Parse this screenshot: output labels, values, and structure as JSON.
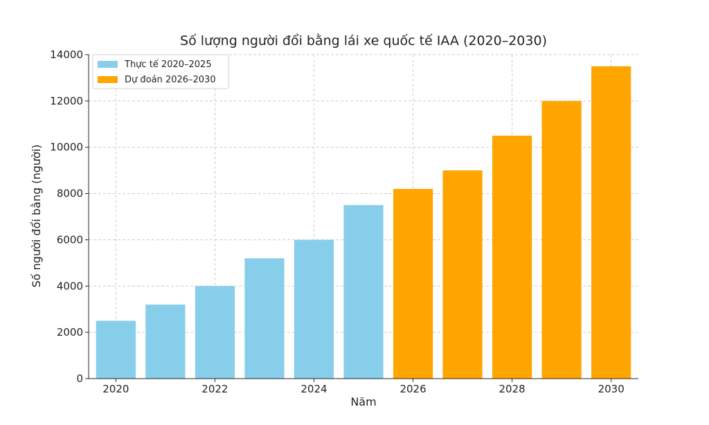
{
  "chart_data": {
    "type": "bar",
    "title": "Số lượng người đổi bằng lái xe quốc tế IAA (2020–2030)",
    "xlabel": "Năm",
    "ylabel": "Số người đổi bằng (người)",
    "categories": [
      2020,
      2021,
      2022,
      2023,
      2024,
      2025,
      2026,
      2027,
      2028,
      2029,
      2030
    ],
    "series": [
      {
        "name": "Thực tế 2020–2025",
        "color": "#87CEEB",
        "x": [
          2020,
          2021,
          2022,
          2023,
          2024,
          2025
        ],
        "values": [
          2500,
          3200,
          4000,
          5200,
          6000,
          7500
        ]
      },
      {
        "name": "Dự đoán 2026–2030",
        "color": "#FFA500",
        "x": [
          2026,
          2027,
          2028,
          2029,
          2030
        ],
        "values": [
          8200,
          9000,
          10500,
          12000,
          13500
        ]
      }
    ],
    "ylim": [
      0,
      14000
    ],
    "xlim": [
      2019.45,
      2030.55
    ],
    "yticks": [
      0,
      2000,
      4000,
      6000,
      8000,
      10000,
      12000,
      14000
    ],
    "xticks": [
      2020,
      2022,
      2024,
      2026,
      2028,
      2030
    ],
    "grid": true,
    "legend_position": "top-left"
  }
}
